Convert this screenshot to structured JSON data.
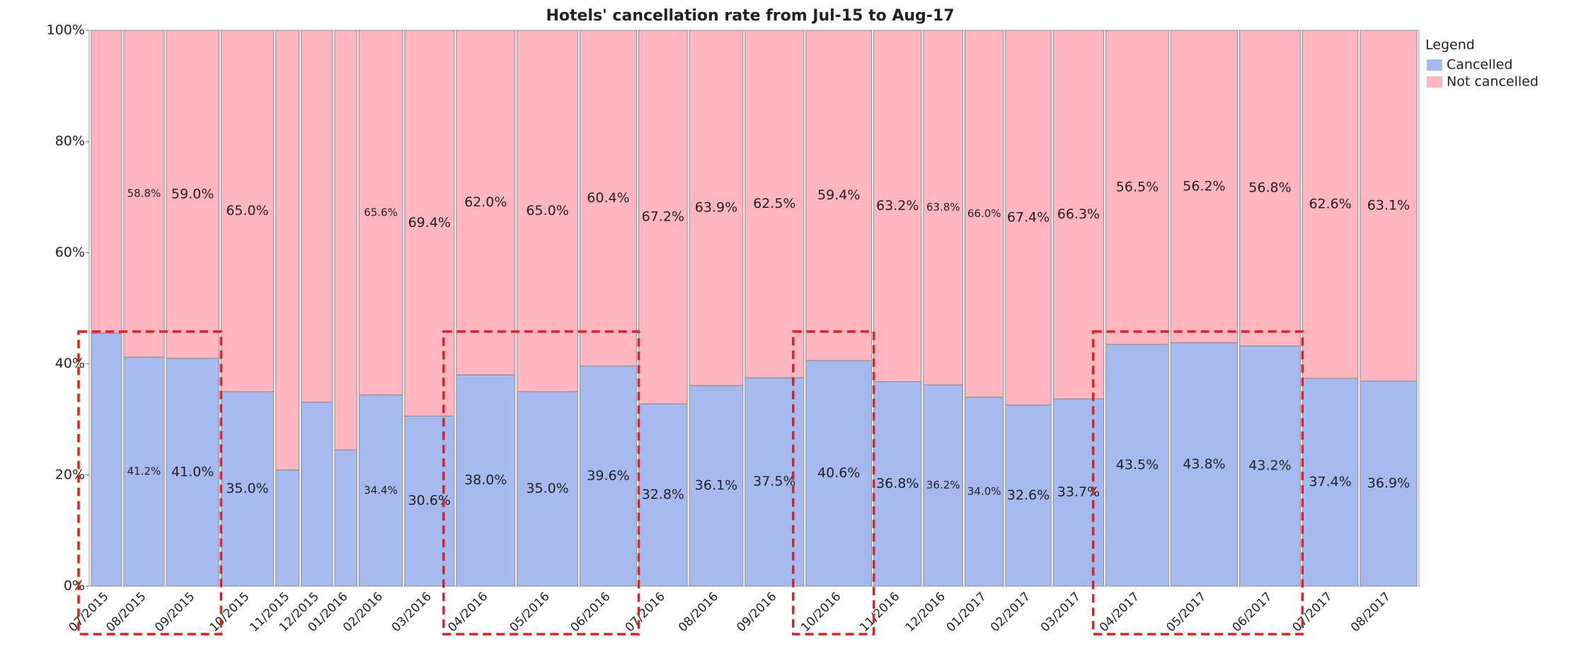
{
  "chart_data": {
    "type": "mosaic",
    "title": "Hotels' cancellation rate from Jul-15 to Aug-17",
    "categories": [
      "07/2015",
      "08/2015",
      "09/2015",
      "10/2015",
      "11/2015",
      "12/2015",
      "01/2016",
      "02/2016",
      "03/2016",
      "04/2016",
      "05/2016",
      "06/2016",
      "07/2016",
      "08/2016",
      "09/2016",
      "10/2016",
      "11/2016",
      "12/2016",
      "01/2017",
      "02/2017",
      "03/2017",
      "04/2017",
      "05/2017",
      "06/2017",
      "07/2017",
      "08/2017"
    ],
    "volumes": [
      30,
      40,
      52,
      52,
      23,
      31,
      22,
      43,
      49,
      58,
      60,
      56,
      48,
      53,
      58,
      65,
      47,
      39,
      38,
      45,
      50,
      62,
      66,
      60,
      55,
      56
    ],
    "series": [
      {
        "name": "Cancelled",
        "color": "#a7baef",
        "values": [
          45.5,
          41.2,
          41.0,
          35.0,
          20.9,
          33.1,
          24.5,
          34.4,
          30.6,
          38.0,
          35.0,
          39.6,
          32.8,
          36.1,
          37.5,
          40.6,
          36.8,
          36.2,
          34.0,
          32.6,
          33.7,
          43.5,
          43.8,
          43.2,
          37.4,
          36.9
        ],
        "value_labels": [
          null,
          "41.2%",
          "41.0%",
          "35.0%",
          null,
          null,
          null,
          "34.4%",
          "30.6%",
          "38.0%",
          "35.0%",
          "39.6%",
          "32.8%",
          "36.1%",
          "37.5%",
          "40.6%",
          "36.8%",
          "36.2%",
          "34.0%",
          "32.6%",
          "33.7%",
          "43.5%",
          "43.8%",
          "43.2%",
          "37.4%",
          "36.9%"
        ]
      },
      {
        "name": "Not cancelled",
        "color": "#ffb6c1",
        "values": [
          54.5,
          58.8,
          59.0,
          65.0,
          79.1,
          66.9,
          75.5,
          65.6,
          69.4,
          62.0,
          65.0,
          60.4,
          67.2,
          63.9,
          62.5,
          59.4,
          63.2,
          63.8,
          66.0,
          67.4,
          66.3,
          56.5,
          56.2,
          56.8,
          62.6,
          63.1
        ],
        "value_labels": [
          null,
          "58.8%",
          "59.0%",
          "65.0%",
          null,
          null,
          null,
          "65.6%",
          "69.4%",
          "62.0%",
          "65.0%",
          "60.4%",
          "67.2%",
          "63.9%",
          "62.5%",
          "59.4%",
          "63.2%",
          "63.8%",
          "66.0%",
          "67.4%",
          "66.3%",
          "56.5%",
          "56.2%",
          "56.8%",
          "62.6%",
          "63.1%"
        ]
      }
    ],
    "ylim": [
      0,
      100
    ],
    "yticks": [
      {
        "value": 0,
        "label": "0%"
      },
      {
        "value": 20,
        "label": "20%"
      },
      {
        "value": 40,
        "label": "40%"
      },
      {
        "value": 60,
        "label": "60%"
      },
      {
        "value": 80,
        "label": "80%"
      },
      {
        "value": 100,
        "label": "100%"
      }
    ],
    "legend_title": "Legend",
    "legend": "top-right"
  }
}
